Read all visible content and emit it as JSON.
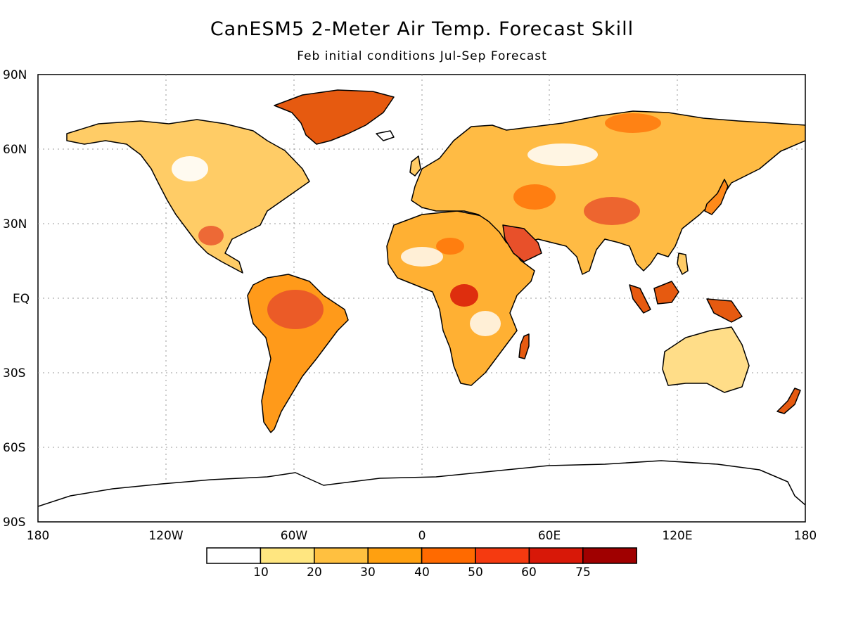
{
  "title": "CanESM5 2-Meter Air Temp. Forecast Skill",
  "subtitle": "Feb initial conditions   Jul-Sep Forecast",
  "lat_labels": [
    "90N",
    "60N",
    "30N",
    "EQ",
    "30S",
    "60S",
    "90S"
  ],
  "lon_labels": [
    "180",
    "120W",
    "60W",
    "0",
    "60E",
    "120E",
    "180"
  ],
  "colorbar": {
    "labels": [
      "10",
      "20",
      "30",
      "40",
      "50",
      "60",
      "75"
    ],
    "colors": [
      "#ffffff",
      "#ffe680",
      "#ffc040",
      "#ffa010",
      "#ff6a00",
      "#f53a10",
      "#d81808",
      "#a00000"
    ]
  },
  "land_fill_color": "#ffd27a",
  "coast_color": "#000000"
}
